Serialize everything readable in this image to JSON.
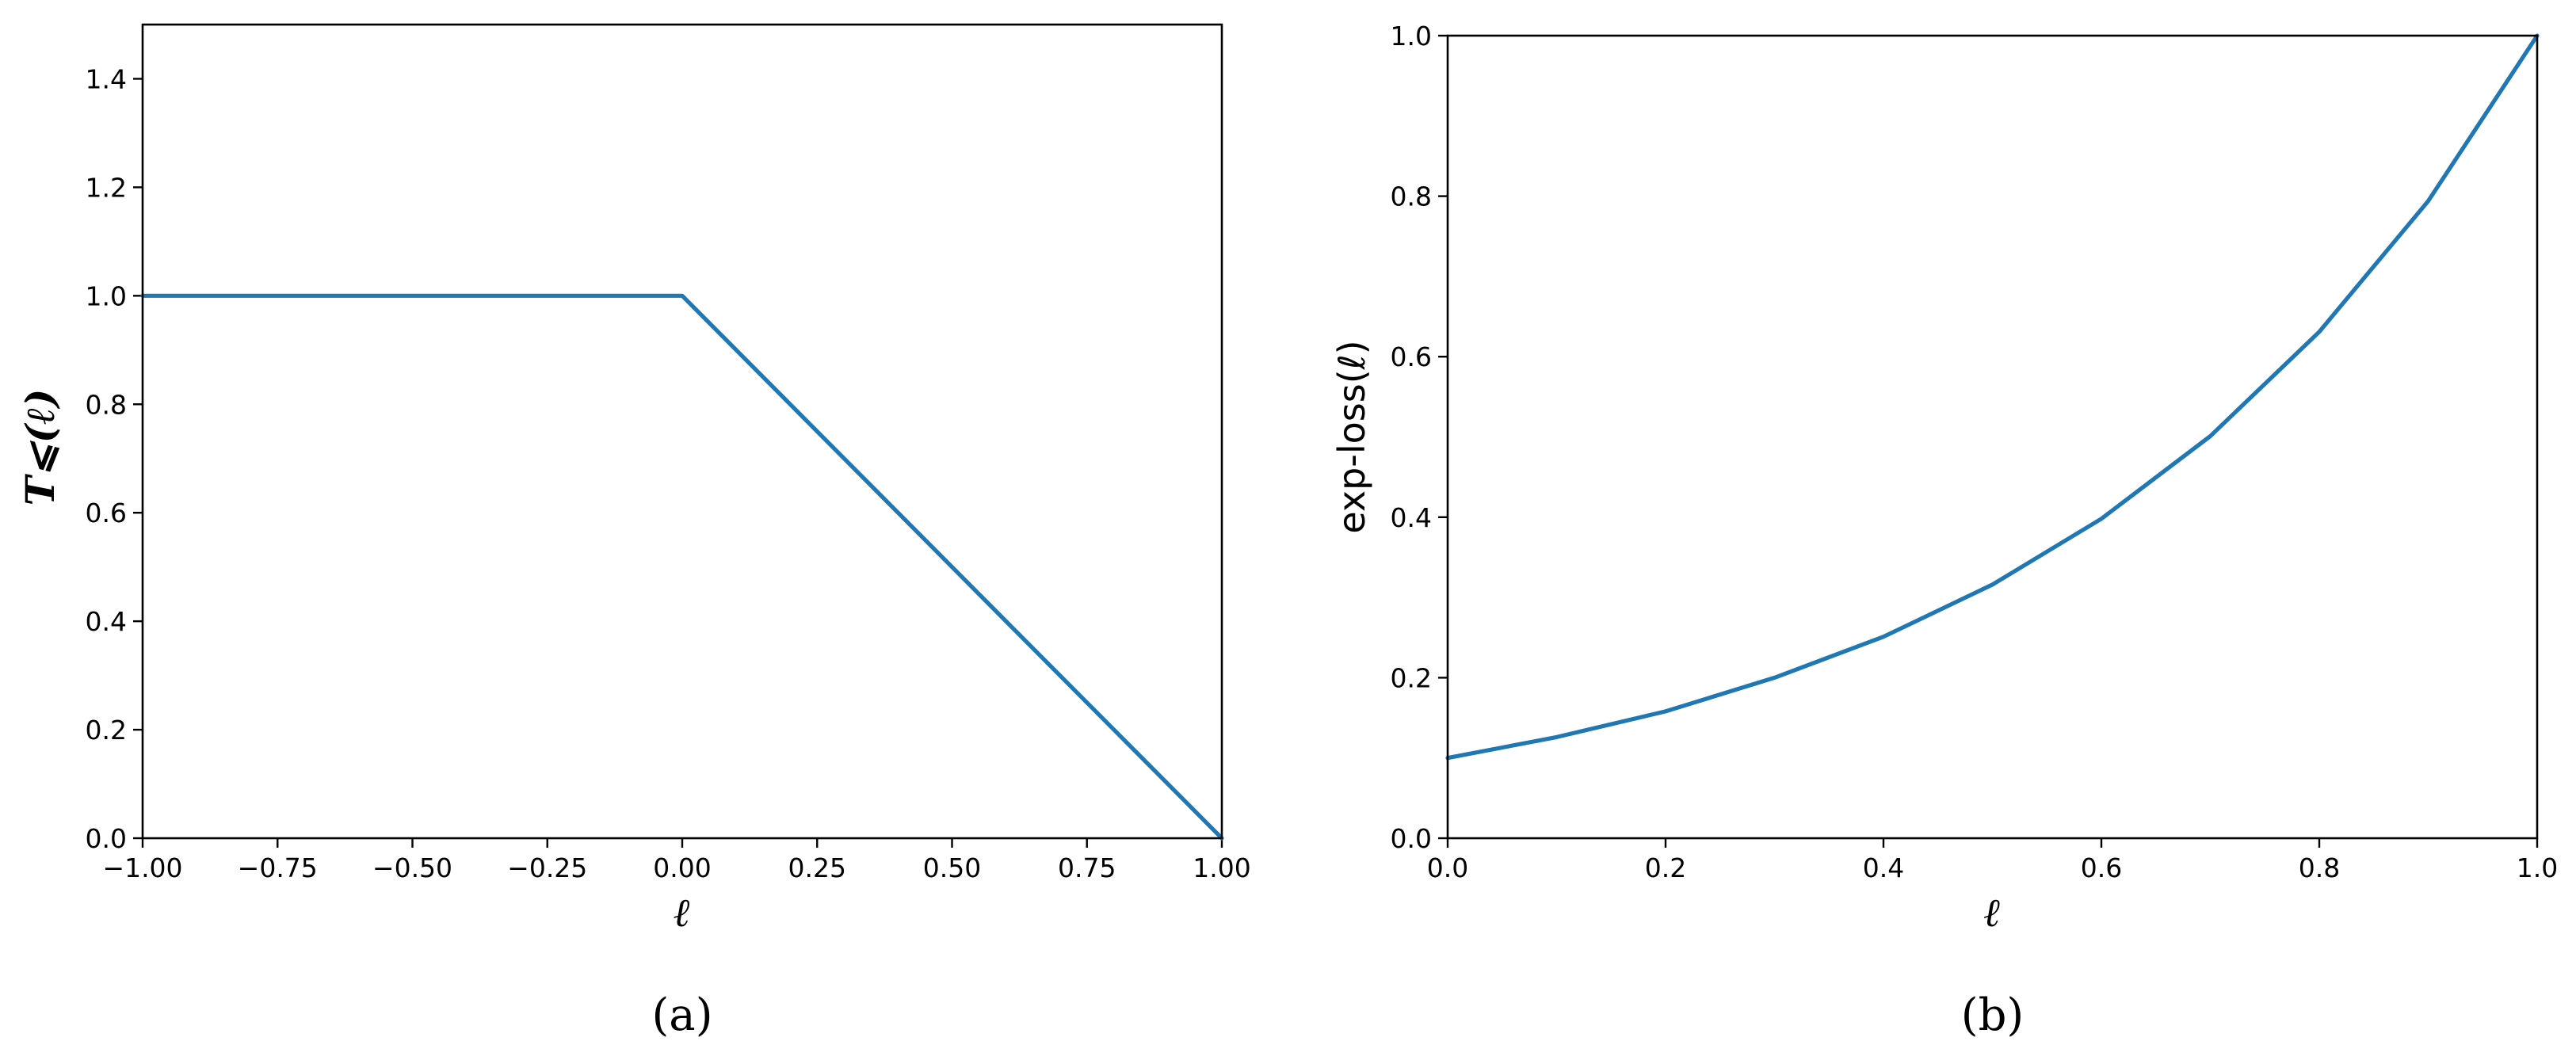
{
  "accent_color": "#1f77b4",
  "chart_data": [
    {
      "type": "line",
      "caption": "(a)",
      "title": "",
      "xlabel": "ℓ",
      "ylabel": "T⩽(ℓ)",
      "xlim": [
        -1.0,
        1.0
      ],
      "ylim": [
        0.0,
        1.5
      ],
      "xticks": [
        "−1.00",
        "−0.75",
        "−0.50",
        "−0.25",
        "0.00",
        "0.25",
        "0.50",
        "0.75",
        "1.00"
      ],
      "yticks": [
        "0.0",
        "0.2",
        "0.4",
        "0.6",
        "0.8",
        "1.0",
        "1.2",
        "1.4"
      ],
      "grid": false,
      "series": [
        {
          "color": "#1f77b4",
          "x": [
            -1.0,
            0.0,
            1.0
          ],
          "y": [
            1.0,
            1.0,
            0.0
          ]
        }
      ]
    },
    {
      "type": "line",
      "caption": "(b)",
      "title": "",
      "xlabel": "ℓ",
      "ylabel": "exp-loss(ℓ)",
      "xlim": [
        0.0,
        1.0
      ],
      "ylim": [
        0.0,
        1.0
      ],
      "xticks": [
        "0.0",
        "0.2",
        "0.4",
        "0.6",
        "0.8",
        "1.0"
      ],
      "yticks": [
        "0.0",
        "0.2",
        "0.4",
        "0.6",
        "0.8",
        "1.0"
      ],
      "grid": false,
      "series": [
        {
          "color": "#1f77b4",
          "x": [
            0.0,
            0.1,
            0.2,
            0.3,
            0.4,
            0.5,
            0.6,
            0.7,
            0.8,
            0.9,
            1.0
          ],
          "y": [
            0.1,
            0.126,
            0.158,
            0.2,
            0.251,
            0.316,
            0.398,
            0.501,
            0.631,
            0.794,
            1.0
          ]
        }
      ]
    }
  ]
}
